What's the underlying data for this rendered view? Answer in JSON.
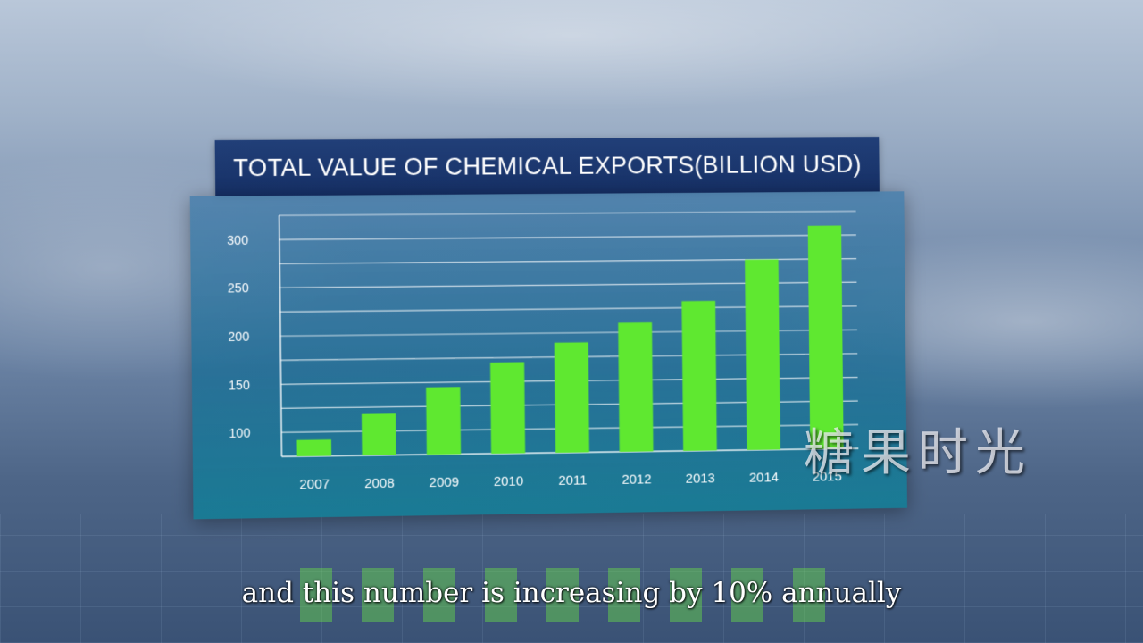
{
  "chart_data": {
    "type": "bar",
    "title": "TOTAL VALUE OF CHEMICAL EXPORTS(BILLION USD)",
    "xlabel": "",
    "ylabel": "",
    "categories": [
      "2007",
      "2008",
      "2009",
      "2010",
      "2011",
      "2012",
      "2013",
      "2014",
      "2015"
    ],
    "values": [
      92,
      118,
      145,
      170,
      190,
      210,
      232,
      275,
      310
    ],
    "yticks": [
      "100",
      "150",
      "200",
      "250",
      "300"
    ],
    "ylim": [
      75,
      325
    ],
    "grid": true,
    "bar_color": "#5fe830"
  },
  "watermark": "糖果时光",
  "subtitle": "and this number is increasing by 10% annually"
}
